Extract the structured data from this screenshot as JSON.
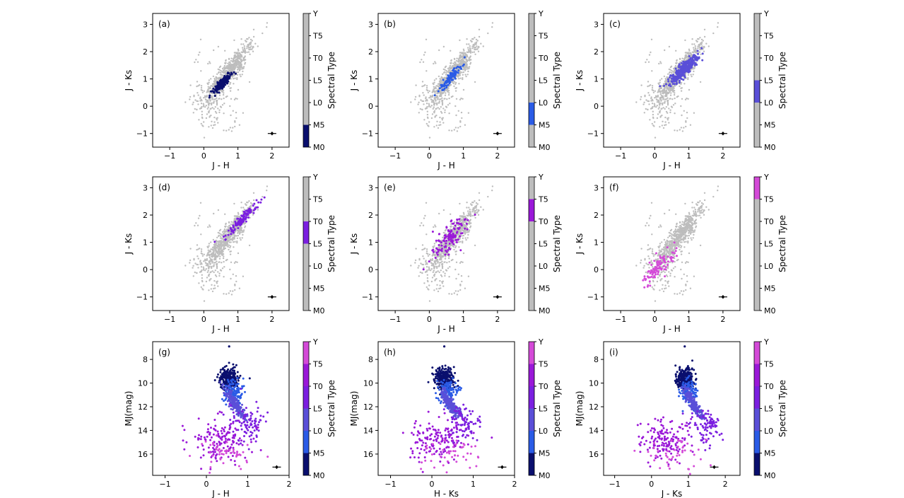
{
  "figure": {
    "colorbar_label": "Spectral Type",
    "colorbar_ticks": [
      "M0",
      "M5",
      "L0",
      "L5",
      "T0",
      "T5",
      "Y"
    ],
    "colors": {
      "grey": "#bdbdbd",
      "M": "#0a0f6e",
      "M5L0": "#2a5be6",
      "L": "#5a4fd8",
      "L5T0": "#7b1fe0",
      "T": "#9a18d8",
      "Y": "#d44ad8",
      "axes": "#000000"
    }
  },
  "chart_data": [
    {
      "panel": "a",
      "label": "(a)",
      "type": "scatter",
      "xlabel": "J - H",
      "ylabel": "J - Ks",
      "xlim": [
        -1.5,
        2.5
      ],
      "ylim": [
        -1.5,
        3.4
      ],
      "xticks": [
        "-1",
        "0",
        "1",
        "2"
      ],
      "yticks": [
        "-1",
        "0",
        "1",
        "2",
        "3"
      ],
      "highlight": {
        "spectral_range": [
          "M0",
          "M5"
        ],
        "color_key": "M",
        "center": [
          0.55,
          0.85
        ],
        "spread": [
          0.12,
          0.14
        ],
        "n": 250
      },
      "background_points": "grey",
      "errorbar": {
        "x": 2.0,
        "y": -1.0
      },
      "colorbar": {
        "band": [
          0,
          5
        ],
        "range": [
          0,
          30
        ]
      }
    },
    {
      "panel": "b",
      "label": "(b)",
      "type": "scatter",
      "xlabel": "J - H",
      "ylabel": "J - Ks",
      "xlim": [
        -1.5,
        2.5
      ],
      "ylim": [
        -1.5,
        3.4
      ],
      "xticks": [
        "-1",
        "0",
        "1",
        "2"
      ],
      "yticks": [
        "-1",
        "0",
        "1",
        "2",
        "3"
      ],
      "highlight": {
        "spectral_range": [
          "M5",
          "L0"
        ],
        "color_key": "M5L0",
        "center": [
          0.65,
          1.1
        ],
        "spread": [
          0.14,
          0.22
        ],
        "n": 110
      },
      "background_points": "grey",
      "errorbar": {
        "x": 2.0,
        "y": -1.0
      },
      "colorbar": {
        "band": [
          5,
          10
        ],
        "range": [
          0,
          30
        ]
      }
    },
    {
      "panel": "c",
      "label": "(c)",
      "type": "scatter",
      "xlabel": "J - H",
      "ylabel": "J - Ks",
      "xlim": [
        -1.5,
        2.5
      ],
      "ylim": [
        -1.5,
        3.4
      ],
      "xticks": [
        "-1",
        "0",
        "1",
        "2"
      ],
      "yticks": [
        "-1",
        "0",
        "1",
        "2",
        "3"
      ],
      "highlight": {
        "spectral_range": [
          "L0",
          "L5"
        ],
        "color_key": "L",
        "center": [
          0.85,
          1.35
        ],
        "spread": [
          0.2,
          0.22
        ],
        "n": 320
      },
      "background_points": "grey",
      "errorbar": {
        "x": 2.0,
        "y": -1.0
      },
      "colorbar": {
        "band": [
          10,
          15
        ],
        "range": [
          0,
          30
        ]
      }
    },
    {
      "panel": "d",
      "label": "(d)",
      "type": "scatter",
      "xlabel": "J - H",
      "ylabel": "J - Ks",
      "xlim": [
        -1.5,
        2.5
      ],
      "ylim": [
        -1.5,
        3.4
      ],
      "xticks": [
        "-1",
        "0",
        "1",
        "2"
      ],
      "yticks": [
        "-1",
        "0",
        "1",
        "2",
        "3"
      ],
      "highlight": {
        "spectral_range": [
          "L5",
          "T0"
        ],
        "color_key": "L5T0",
        "center": [
          1.1,
          1.8
        ],
        "spread": [
          0.22,
          0.3
        ],
        "n": 140
      },
      "background_points": "grey",
      "errorbar": {
        "x": 2.0,
        "y": -1.0
      },
      "colorbar": {
        "band": [
          15,
          20
        ],
        "range": [
          0,
          30
        ]
      }
    },
    {
      "panel": "e",
      "label": "(e)",
      "type": "scatter",
      "xlabel": "J - H",
      "ylabel": "J - Ks",
      "xlim": [
        -1.5,
        2.5
      ],
      "ylim": [
        -1.5,
        3.4
      ],
      "xticks": [
        "-1",
        "0",
        "1",
        "2"
      ],
      "yticks": [
        "-1",
        "0",
        "1",
        "2",
        "3"
      ],
      "highlight": {
        "spectral_range": [
          "T0",
          "T5"
        ],
        "color_key": "T",
        "center": [
          0.6,
          1.2
        ],
        "spread": [
          0.25,
          0.45
        ],
        "n": 120
      },
      "background_points": "grey",
      "errorbar": {
        "x": 2.0,
        "y": -1.0
      },
      "colorbar": {
        "band": [
          20,
          25
        ],
        "range": [
          0,
          30
        ]
      }
    },
    {
      "panel": "f",
      "label": "(f)",
      "type": "scatter",
      "xlabel": "J - H",
      "ylabel": "J - Ks",
      "xlim": [
        -1.5,
        2.5
      ],
      "ylim": [
        -1.5,
        3.4
      ],
      "xticks": [
        "-1",
        "0",
        "1",
        "2"
      ],
      "yticks": [
        "-1",
        "0",
        "1",
        "2",
        "3"
      ],
      "highlight": {
        "spectral_range": [
          "T5",
          "Y"
        ],
        "color_key": "Y",
        "center": [
          0.1,
          0.1
        ],
        "spread": [
          0.25,
          0.35
        ],
        "n": 110
      },
      "background_points": "grey",
      "errorbar": {
        "x": 2.0,
        "y": -1.0
      },
      "colorbar": {
        "band": [
          25,
          30
        ],
        "range": [
          0,
          30
        ]
      }
    },
    {
      "panel": "g",
      "label": "(g)",
      "type": "scatter",
      "xlabel": "J - H",
      "ylabel": "MJ(mag)",
      "xlim": [
        -1.3,
        2.0
      ],
      "ylim": [
        17.8,
        6.5
      ],
      "xticks": [
        "-1",
        "0",
        "1",
        "2"
      ],
      "yticks": [
        "8",
        "10",
        "12",
        "14",
        "16"
      ],
      "cmd": {
        "x_ML": [
          0.55,
          0.7
        ],
        "x_T": [
          0.3,
          0.45
        ]
      },
      "errorbar": {
        "x": 1.7,
        "y": 17.1
      },
      "colorbar": {
        "full": true,
        "range": [
          0,
          30
        ]
      }
    },
    {
      "panel": "h",
      "label": "(h)",
      "type": "scatter",
      "xlabel": "H - Ks",
      "ylabel": "MJ(mag)",
      "xlim": [
        -1.3,
        2.0
      ],
      "ylim": [
        17.8,
        6.5
      ],
      "xticks": [
        "-1",
        "0",
        "1",
        "2"
      ],
      "yticks": [
        "8",
        "10",
        "12",
        "14",
        "16"
      ],
      "cmd": {
        "x_ML": [
          0.3,
          0.45
        ],
        "x_T": [
          0.1,
          0.45
        ]
      },
      "errorbar": {
        "x": 1.7,
        "y": 17.1
      },
      "colorbar": {
        "full": true,
        "range": [
          0,
          30
        ]
      }
    },
    {
      "panel": "i",
      "label": "(i)",
      "type": "scatter",
      "xlabel": "J - Ks",
      "ylabel": "MJ(mag)",
      "xlim": [
        -1.3,
        2.4
      ],
      "ylim": [
        17.8,
        6.5
      ],
      "xticks": [
        "-1",
        "0",
        "1",
        "2"
      ],
      "yticks": [
        "8",
        "10",
        "12",
        "14",
        "16"
      ],
      "cmd": {
        "x_ML": [
          0.9,
          1.15
        ],
        "x_T": [
          0.4,
          0.6
        ]
      },
      "errorbar": {
        "x": 1.7,
        "y": 17.1
      },
      "colorbar": {
        "full": true,
        "range": [
          0,
          30
        ]
      }
    }
  ]
}
